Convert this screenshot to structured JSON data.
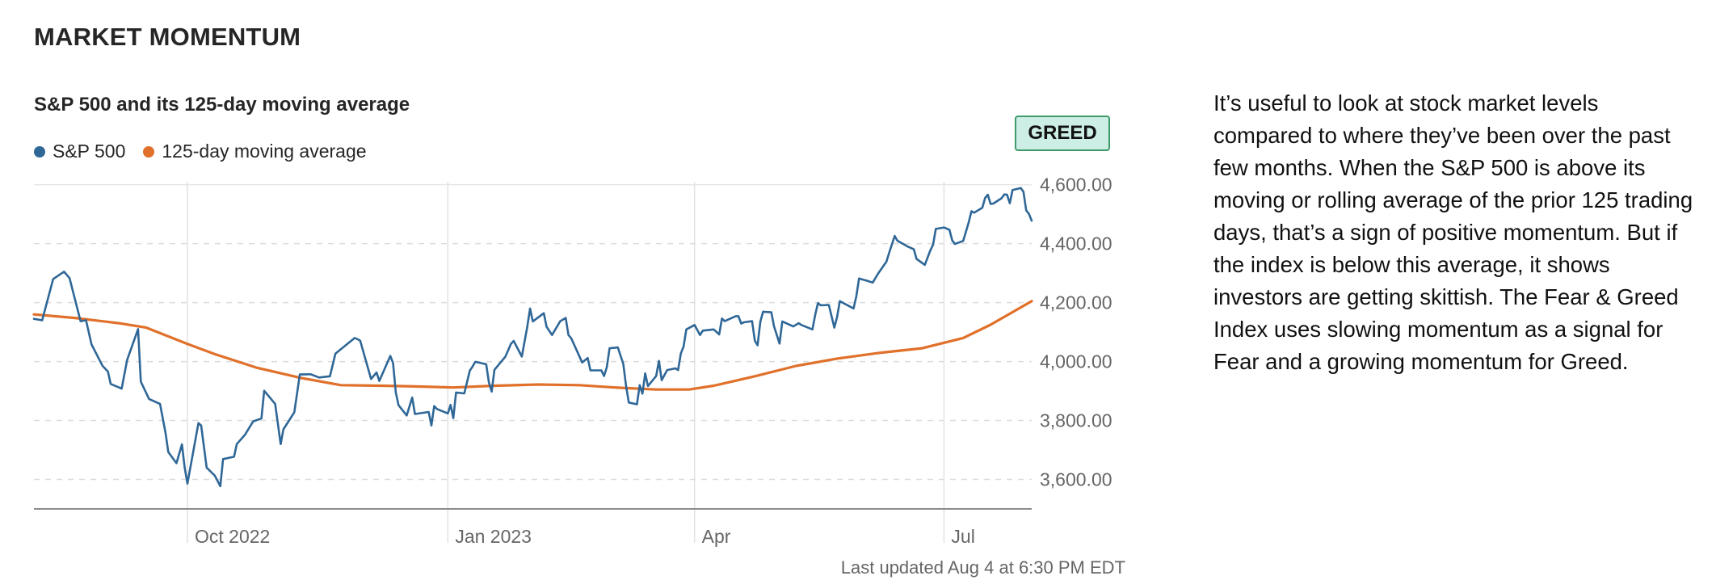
{
  "section_title": "MARKET MOMENTUM",
  "rating": "GREED",
  "last_updated": "Last updated Aug 4 at 6:30 PM EDT",
  "description": "It’s useful to look at stock market levels compared to where they’ve been over the past few months. When the S&P 500 is above its moving or rolling average of the prior 125 trading days, that’s a sign of positive momentum. But if the index is below this average, it shows investors are getting skittish. The Fear & Greed Index uses slowing momentum as a signal for Fear and a growing momentum for Greed.",
  "colors": {
    "sp500": "#2f6797",
    "moving_average": "#e0702a",
    "badge_fill": "#cdeee5",
    "badge_border": "#3f9a6a"
  },
  "chart_data": {
    "type": "line",
    "title": "S&P 500 and its 125-day moving average",
    "xlabel": "",
    "ylabel": "",
    "x_ticks": [
      {
        "label": "Oct 2022",
        "date": "2022-09-30"
      },
      {
        "label": "Jan 2023",
        "date": "2023-01-03"
      },
      {
        "label": "Apr",
        "date": "2023-04-03"
      },
      {
        "label": "Jul",
        "date": "2023-07-03"
      }
    ],
    "y_ticks": [
      "3,600.00",
      "3,800.00",
      "4,000.00",
      "4,200.00",
      "4,400.00",
      "4,600.00"
    ],
    "y_tick_values": [
      3600,
      3800,
      4000,
      4200,
      4400,
      4600
    ],
    "xlim": [
      "2022-08-05",
      "2023-08-04"
    ],
    "ylim": [
      3500,
      4610
    ],
    "grid": true,
    "legend_position": "top-left",
    "series": [
      {
        "name": "S&P 500",
        "points": [
          [
            "2022-08-05",
            4145
          ],
          [
            "2022-08-08",
            4140
          ],
          [
            "2022-08-10",
            4210
          ],
          [
            "2022-08-12",
            4280
          ],
          [
            "2022-08-16",
            4305
          ],
          [
            "2022-08-18",
            4283
          ],
          [
            "2022-08-22",
            4137
          ],
          [
            "2022-08-24",
            4140
          ],
          [
            "2022-08-26",
            4058
          ],
          [
            "2022-08-30",
            3986
          ],
          [
            "2022-09-01",
            3966
          ],
          [
            "2022-09-02",
            3924
          ],
          [
            "2022-09-06",
            3908
          ],
          [
            "2022-09-08",
            4006
          ],
          [
            "2022-09-12",
            4110
          ],
          [
            "2022-09-13",
            3932
          ],
          [
            "2022-09-16",
            3873
          ],
          [
            "2022-09-20",
            3856
          ],
          [
            "2022-09-22",
            3758
          ],
          [
            "2022-09-23",
            3693
          ],
          [
            "2022-09-26",
            3655
          ],
          [
            "2022-09-28",
            3719
          ],
          [
            "2022-09-29",
            3640
          ],
          [
            "2022-09-30",
            3586
          ],
          [
            "2022-10-04",
            3791
          ],
          [
            "2022-10-05",
            3783
          ],
          [
            "2022-10-07",
            3640
          ],
          [
            "2022-10-10",
            3613
          ],
          [
            "2022-10-12",
            3577
          ],
          [
            "2022-10-13",
            3669
          ],
          [
            "2022-10-17",
            3677
          ],
          [
            "2022-10-18",
            3720
          ],
          [
            "2022-10-21",
            3752
          ],
          [
            "2022-10-24",
            3797
          ],
          [
            "2022-10-27",
            3807
          ],
          [
            "2022-10-28",
            3901
          ],
          [
            "2022-11-01",
            3856
          ],
          [
            "2022-11-03",
            3720
          ],
          [
            "2022-11-04",
            3770
          ],
          [
            "2022-11-08",
            3828
          ],
          [
            "2022-11-10",
            3956
          ],
          [
            "2022-11-14",
            3957
          ],
          [
            "2022-11-17",
            3946
          ],
          [
            "2022-11-21",
            3950
          ],
          [
            "2022-11-23",
            4027
          ],
          [
            "2022-11-30",
            4080
          ],
          [
            "2022-12-01",
            4076
          ],
          [
            "2022-12-02",
            4071
          ],
          [
            "2022-12-06",
            3941
          ],
          [
            "2022-12-08",
            3963
          ],
          [
            "2022-12-09",
            3934
          ],
          [
            "2022-12-13",
            4019
          ],
          [
            "2022-12-14",
            3995
          ],
          [
            "2022-12-15",
            3895
          ],
          [
            "2022-12-16",
            3852
          ],
          [
            "2022-12-19",
            3817
          ],
          [
            "2022-12-21",
            3878
          ],
          [
            "2022-12-22",
            3822
          ],
          [
            "2022-12-27",
            3829
          ],
          [
            "2022-12-28",
            3783
          ],
          [
            "2022-12-29",
            3849
          ],
          [
            "2022-12-30",
            3839
          ],
          [
            "2023-01-03",
            3824
          ],
          [
            "2023-01-04",
            3853
          ],
          [
            "2023-01-05",
            3808
          ],
          [
            "2023-01-06",
            3895
          ],
          [
            "2023-01-09",
            3892
          ],
          [
            "2023-01-11",
            3969
          ],
          [
            "2023-01-12",
            3983
          ],
          [
            "2023-01-13",
            3999
          ],
          [
            "2023-01-17",
            3991
          ],
          [
            "2023-01-18",
            3928
          ],
          [
            "2023-01-19",
            3898
          ],
          [
            "2023-01-20",
            3972
          ],
          [
            "2023-01-24",
            4017
          ],
          [
            "2023-01-26",
            4060
          ],
          [
            "2023-01-27",
            4070
          ],
          [
            "2023-01-30",
            4017
          ],
          [
            "2023-02-01",
            4119
          ],
          [
            "2023-02-02",
            4180
          ],
          [
            "2023-02-03",
            4136
          ],
          [
            "2023-02-07",
            4164
          ],
          [
            "2023-02-08",
            4118
          ],
          [
            "2023-02-10",
            4090
          ],
          [
            "2023-02-13",
            4137
          ],
          [
            "2023-02-15",
            4148
          ],
          [
            "2023-02-16",
            4090
          ],
          [
            "2023-02-17",
            4079
          ],
          [
            "2023-02-21",
            3997
          ],
          [
            "2023-02-23",
            4012
          ],
          [
            "2023-02-24",
            3970
          ],
          [
            "2023-02-28",
            3970
          ],
          [
            "2023-03-01",
            3951
          ],
          [
            "2023-03-02",
            3981
          ],
          [
            "2023-03-03",
            4045
          ],
          [
            "2023-03-06",
            4048
          ],
          [
            "2023-03-08",
            3992
          ],
          [
            "2023-03-09",
            3918
          ],
          [
            "2023-03-10",
            3861
          ],
          [
            "2023-03-13",
            3855
          ],
          [
            "2023-03-14",
            3920
          ],
          [
            "2023-03-15",
            3891
          ],
          [
            "2023-03-16",
            3960
          ],
          [
            "2023-03-17",
            3917
          ],
          [
            "2023-03-20",
            3951
          ],
          [
            "2023-03-21",
            4002
          ],
          [
            "2023-03-22",
            3937
          ],
          [
            "2023-03-24",
            3971
          ],
          [
            "2023-03-27",
            3977
          ],
          [
            "2023-03-28",
            3971
          ],
          [
            "2023-03-29",
            4027
          ],
          [
            "2023-03-30",
            4051
          ],
          [
            "2023-03-31",
            4109
          ],
          [
            "2023-04-03",
            4124
          ],
          [
            "2023-04-05",
            4090
          ],
          [
            "2023-04-06",
            4105
          ],
          [
            "2023-04-10",
            4109
          ],
          [
            "2023-04-12",
            4092
          ],
          [
            "2023-04-13",
            4146
          ],
          [
            "2023-04-14",
            4137
          ],
          [
            "2023-04-18",
            4154
          ],
          [
            "2023-04-19",
            4154
          ],
          [
            "2023-04-20",
            4129
          ],
          [
            "2023-04-21",
            4133
          ],
          [
            "2023-04-24",
            4137
          ],
          [
            "2023-04-25",
            4071
          ],
          [
            "2023-04-26",
            4055
          ],
          [
            "2023-04-27",
            4135
          ],
          [
            "2023-04-28",
            4169
          ],
          [
            "2023-05-01",
            4167
          ],
          [
            "2023-05-02",
            4119
          ],
          [
            "2023-05-04",
            4061
          ],
          [
            "2023-05-05",
            4136
          ],
          [
            "2023-05-09",
            4119
          ],
          [
            "2023-05-11",
            4130
          ],
          [
            "2023-05-12",
            4124
          ],
          [
            "2023-05-16",
            4109
          ],
          [
            "2023-05-17",
            4158
          ],
          [
            "2023-05-18",
            4198
          ],
          [
            "2023-05-19",
            4191
          ],
          [
            "2023-05-22",
            4192
          ],
          [
            "2023-05-24",
            4115
          ],
          [
            "2023-05-25",
            4151
          ],
          [
            "2023-05-26",
            4205
          ],
          [
            "2023-05-31",
            4180
          ],
          [
            "2023-06-01",
            4221
          ],
          [
            "2023-06-02",
            4282
          ],
          [
            "2023-06-05",
            4274
          ],
          [
            "2023-06-07",
            4268
          ],
          [
            "2023-06-09",
            4299
          ],
          [
            "2023-06-12",
            4339
          ],
          [
            "2023-06-13",
            4369
          ],
          [
            "2023-06-15",
            4426
          ],
          [
            "2023-06-16",
            4410
          ],
          [
            "2023-06-20",
            4389
          ],
          [
            "2023-06-22",
            4381
          ],
          [
            "2023-06-23",
            4348
          ],
          [
            "2023-06-26",
            4328
          ],
          [
            "2023-06-28",
            4377
          ],
          [
            "2023-06-29",
            4396
          ],
          [
            "2023-06-30",
            4450
          ],
          [
            "2023-07-03",
            4455
          ],
          [
            "2023-07-05",
            4447
          ],
          [
            "2023-07-06",
            4411
          ],
          [
            "2023-07-07",
            4399
          ],
          [
            "2023-07-10",
            4409
          ],
          [
            "2023-07-12",
            4472
          ],
          [
            "2023-07-13",
            4510
          ],
          [
            "2023-07-14",
            4505
          ],
          [
            "2023-07-17",
            4522
          ],
          [
            "2023-07-18",
            4555
          ],
          [
            "2023-07-19",
            4566
          ],
          [
            "2023-07-20",
            4535
          ],
          [
            "2023-07-21",
            4536
          ],
          [
            "2023-07-24",
            4554
          ],
          [
            "2023-07-25",
            4567
          ],
          [
            "2023-07-26",
            4566
          ],
          [
            "2023-07-27",
            4537
          ],
          [
            "2023-07-28",
            4582
          ],
          [
            "2023-07-31",
            4589
          ],
          [
            "2023-08-01",
            4576
          ],
          [
            "2023-08-02",
            4513
          ],
          [
            "2023-08-03",
            4501
          ],
          [
            "2023-08-04",
            4478
          ]
        ]
      },
      {
        "name": "125-day moving average",
        "points": [
          [
            "2022-08-05",
            4160
          ],
          [
            "2022-08-20",
            4148
          ],
          [
            "2022-09-05",
            4130
          ],
          [
            "2022-09-15",
            4115
          ],
          [
            "2022-09-30",
            4060
          ],
          [
            "2022-10-10",
            4025
          ],
          [
            "2022-10-25",
            3980
          ],
          [
            "2022-11-10",
            3945
          ],
          [
            "2022-11-25",
            3920
          ],
          [
            "2022-12-10",
            3918
          ],
          [
            "2022-12-25",
            3915
          ],
          [
            "2023-01-05",
            3912
          ],
          [
            "2023-01-20",
            3918
          ],
          [
            "2023-02-05",
            3922
          ],
          [
            "2023-02-20",
            3920
          ],
          [
            "2023-03-05",
            3912
          ],
          [
            "2023-03-20",
            3905
          ],
          [
            "2023-04-01",
            3905
          ],
          [
            "2023-04-10",
            3918
          ],
          [
            "2023-04-25",
            3950
          ],
          [
            "2023-05-10",
            3985
          ],
          [
            "2023-05-25",
            4010
          ],
          [
            "2023-06-10",
            4030
          ],
          [
            "2023-06-25",
            4045
          ],
          [
            "2023-07-10",
            4080
          ],
          [
            "2023-07-20",
            4125
          ],
          [
            "2023-08-04",
            4205
          ]
        ]
      }
    ]
  }
}
